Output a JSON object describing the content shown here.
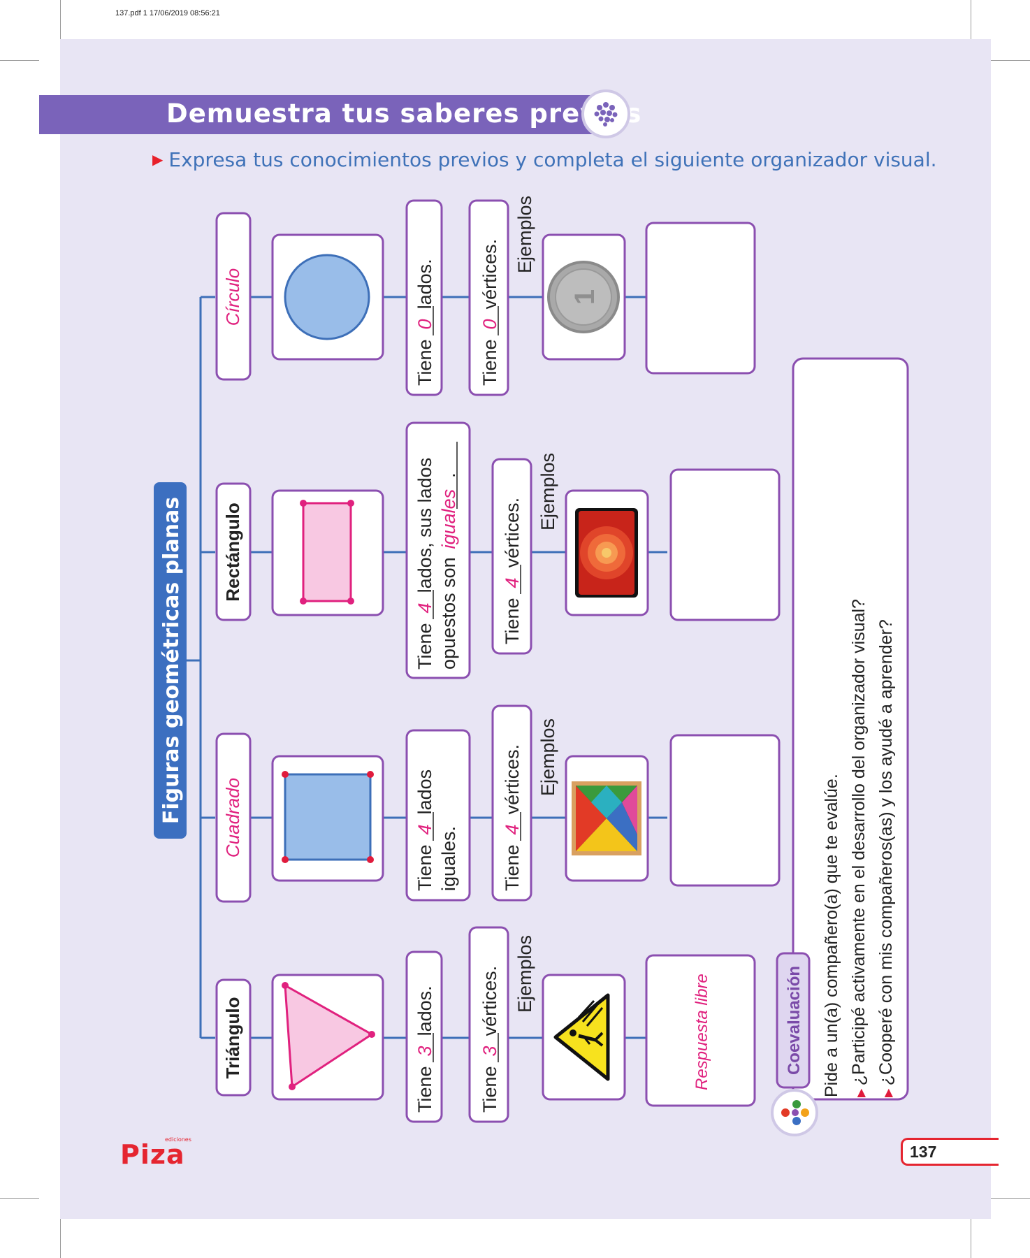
{
  "print_info": "137.pdf   1   17/06/2019   08:56:21",
  "header": {
    "title": "Demuestra tus saberes previos",
    "instruction": "Expresa tus conocimientos previos y completa el siguiente organizador visual."
  },
  "organizer": {
    "root": "Figuras geométricas planas",
    "branches": {
      "triangulo": {
        "name": "Triángulo",
        "sides_text": [
          "Tiene",
          "3",
          "lados."
        ],
        "vertices_text": [
          "Tiene",
          "3",
          "vértices."
        ],
        "examples_label": "Ejemplos",
        "example_image": "warning-sign",
        "answer": "Respuesta libre"
      },
      "cuadrado": {
        "name": "Cuadrado",
        "sides_line1": [
          "Tiene",
          "4",
          "lados"
        ],
        "sides_line2": "iguales.",
        "vertices_text": [
          "Tiene",
          "4",
          "vértices."
        ],
        "examples_label": "Ejemplos",
        "example_image": "tangram"
      },
      "rectangulo": {
        "name": "Rectángulo",
        "sides_line1": [
          "Tiene",
          "4",
          "lados, sus lados"
        ],
        "sides_line2": [
          "opuestos son",
          "iguales",
          "."
        ],
        "vertices_text": [
          "Tiene",
          "4",
          "vértices."
        ],
        "examples_label": "Ejemplos",
        "example_image": "tablet"
      },
      "circulo": {
        "name": "Círculo",
        "sides_text": [
          "Tiene",
          "0",
          "lados."
        ],
        "vertices_text": [
          "Tiene",
          "0",
          "vértices."
        ],
        "examples_label": "Ejemplos",
        "example_image": "coin"
      }
    }
  },
  "coevaluacion": {
    "title": "Coevaluación",
    "prompt": "Pide a un(a) compañero(a) que te evalúe.",
    "questions": [
      "¿Participé activamente en el desarrollo del organizador visual?",
      "¿Cooperé con mis compañeros(as) y los ayudé a aprender?"
    ]
  },
  "footer": {
    "brand": "Piza",
    "brand_small": "ediciones",
    "page_number": "137"
  },
  "colors": {
    "banner": "#7a63ba",
    "page_bg": "#e8e5f4",
    "box_border": "#8b4fb0",
    "connector": "#3d6fb8",
    "root_box": "#3c6fc0",
    "answer_pink": "#e0217e",
    "blue_shape": "#99bde9",
    "pink_shape": "#f8c8e2",
    "vertex_red": "#e01b3c",
    "magenta_vertex": "#e0217e"
  }
}
